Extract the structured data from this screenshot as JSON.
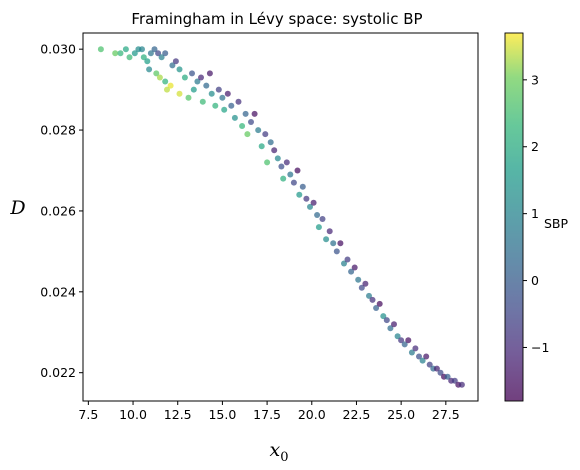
{
  "chart_data": {
    "type": "scatter",
    "title": "Framingham in Lévy space: systolic BP",
    "xlabel": "x",
    "xlabel_sub": "0",
    "ylabel": "D",
    "xlim": [
      7.2,
      29.3
    ],
    "ylim": [
      0.0213,
      0.0304
    ],
    "xticks": [
      "7.5",
      "10.0",
      "12.5",
      "15.0",
      "17.5",
      "20.0",
      "22.5",
      "25.0",
      "27.5"
    ],
    "yticks": [
      "0.022",
      "0.024",
      "0.026",
      "0.028",
      "0.030"
    ],
    "grid": false,
    "colorbar": {
      "label": "SBP",
      "range": [
        -1.8,
        3.7
      ],
      "ticks": [
        "−1",
        "0",
        "1",
        "2",
        "3"
      ],
      "colormap": "viridis"
    },
    "points": [
      {
        "x": 8.2,
        "y": 0.03,
        "c": 2.6
      },
      {
        "x": 9.0,
        "y": 0.0299,
        "c": 2.9
      },
      {
        "x": 9.3,
        "y": 0.0299,
        "c": 2.3
      },
      {
        "x": 9.6,
        "y": 0.03,
        "c": 1.9
      },
      {
        "x": 9.8,
        "y": 0.0298,
        "c": 2.4
      },
      {
        "x": 10.1,
        "y": 0.0299,
        "c": 1.5
      },
      {
        "x": 10.3,
        "y": 0.03,
        "c": 1.2
      },
      {
        "x": 10.5,
        "y": 0.03,
        "c": 1.0
      },
      {
        "x": 10.6,
        "y": 0.0298,
        "c": 2.1
      },
      {
        "x": 10.8,
        "y": 0.0297,
        "c": 1.7
      },
      {
        "x": 11.0,
        "y": 0.0299,
        "c": 0.6
      },
      {
        "x": 11.2,
        "y": 0.03,
        "c": 0.2
      },
      {
        "x": 11.4,
        "y": 0.0299,
        "c": -0.5
      },
      {
        "x": 11.6,
        "y": 0.0298,
        "c": 0.9
      },
      {
        "x": 11.8,
        "y": 0.0299,
        "c": 0.0
      },
      {
        "x": 10.9,
        "y": 0.0295,
        "c": 1.1
      },
      {
        "x": 11.3,
        "y": 0.0294,
        "c": 2.8
      },
      {
        "x": 11.5,
        "y": 0.0293,
        "c": 3.3
      },
      {
        "x": 11.8,
        "y": 0.0292,
        "c": 2.2
      },
      {
        "x": 12.1,
        "y": 0.0291,
        "c": 3.6
      },
      {
        "x": 11.9,
        "y": 0.029,
        "c": 3.4
      },
      {
        "x": 12.2,
        "y": 0.0296,
        "c": 0.4
      },
      {
        "x": 12.4,
        "y": 0.0297,
        "c": -0.8
      },
      {
        "x": 12.6,
        "y": 0.0295,
        "c": 1.4
      },
      {
        "x": 12.6,
        "y": 0.0289,
        "c": 3.5
      },
      {
        "x": 12.9,
        "y": 0.0293,
        "c": 2.0
      },
      {
        "x": 13.1,
        "y": 0.0288,
        "c": 2.7
      },
      {
        "x": 13.3,
        "y": 0.0294,
        "c": -0.2
      },
      {
        "x": 13.4,
        "y": 0.029,
        "c": 1.6
      },
      {
        "x": 13.6,
        "y": 0.0292,
        "c": 0.7
      },
      {
        "x": 13.8,
        "y": 0.0293,
        "c": -1.1
      },
      {
        "x": 13.9,
        "y": 0.0287,
        "c": 2.4
      },
      {
        "x": 14.1,
        "y": 0.0291,
        "c": 0.3
      },
      {
        "x": 14.3,
        "y": 0.0294,
        "c": -1.4
      },
      {
        "x": 14.4,
        "y": 0.0289,
        "c": 1.2
      },
      {
        "x": 14.6,
        "y": 0.0286,
        "c": 2.2
      },
      {
        "x": 14.8,
        "y": 0.029,
        "c": -0.6
      },
      {
        "x": 15.0,
        "y": 0.0288,
        "c": 0.5
      },
      {
        "x": 15.1,
        "y": 0.0285,
        "c": 1.8
      },
      {
        "x": 15.3,
        "y": 0.0289,
        "c": -1.3
      },
      {
        "x": 15.5,
        "y": 0.0286,
        "c": 0.1
      },
      {
        "x": 15.7,
        "y": 0.0283,
        "c": 1.3
      },
      {
        "x": 15.9,
        "y": 0.0287,
        "c": -0.9
      },
      {
        "x": 16.1,
        "y": 0.0281,
        "c": 2.3
      },
      {
        "x": 16.3,
        "y": 0.0284,
        "c": 0.2
      },
      {
        "x": 16.4,
        "y": 0.0279,
        "c": 2.9
      },
      {
        "x": 16.6,
        "y": 0.0282,
        "c": -0.4
      },
      {
        "x": 16.8,
        "y": 0.0284,
        "c": -1.5
      },
      {
        "x": 17.0,
        "y": 0.028,
        "c": 0.8
      },
      {
        "x": 17.2,
        "y": 0.0276,
        "c": 1.9
      },
      {
        "x": 17.4,
        "y": 0.0279,
        "c": -0.7
      },
      {
        "x": 17.5,
        "y": 0.0272,
        "c": 2.6
      },
      {
        "x": 17.7,
        "y": 0.0277,
        "c": 0.4
      },
      {
        "x": 17.9,
        "y": 0.0275,
        "c": -1.2
      },
      {
        "x": 18.1,
        "y": 0.0273,
        "c": 1.1
      },
      {
        "x": 18.3,
        "y": 0.0271,
        "c": -0.3
      },
      {
        "x": 18.4,
        "y": 0.0268,
        "c": 2.1
      },
      {
        "x": 18.6,
        "y": 0.0272,
        "c": -1.0
      },
      {
        "x": 18.8,
        "y": 0.0269,
        "c": 0.6
      },
      {
        "x": 19.0,
        "y": 0.0267,
        "c": -0.5
      },
      {
        "x": 19.2,
        "y": 0.027,
        "c": -1.6
      },
      {
        "x": 19.3,
        "y": 0.0264,
        "c": 1.5
      },
      {
        "x": 19.5,
        "y": 0.0266,
        "c": 0.0
      },
      {
        "x": 19.7,
        "y": 0.0263,
        "c": -0.8
      },
      {
        "x": 19.9,
        "y": 0.0261,
        "c": 1.0
      },
      {
        "x": 20.1,
        "y": 0.0262,
        "c": -1.3
      },
      {
        "x": 20.3,
        "y": 0.0259,
        "c": 0.3
      },
      {
        "x": 20.4,
        "y": 0.0256,
        "c": 1.6
      },
      {
        "x": 20.6,
        "y": 0.0258,
        "c": -0.6
      },
      {
        "x": 20.8,
        "y": 0.0253,
        "c": 1.2
      },
      {
        "x": 21.0,
        "y": 0.0255,
        "c": -1.1
      },
      {
        "x": 21.2,
        "y": 0.0252,
        "c": 0.5
      },
      {
        "x": 21.4,
        "y": 0.025,
        "c": -0.2
      },
      {
        "x": 21.6,
        "y": 0.0252,
        "c": -1.5
      },
      {
        "x": 21.8,
        "y": 0.0247,
        "c": 0.9
      },
      {
        "x": 22.0,
        "y": 0.0248,
        "c": -0.7
      },
      {
        "x": 22.2,
        "y": 0.0245,
        "c": 0.2
      },
      {
        "x": 22.4,
        "y": 0.0246,
        "c": -1.4
      },
      {
        "x": 22.6,
        "y": 0.0243,
        "c": 0.6
      },
      {
        "x": 22.8,
        "y": 0.0241,
        "c": -0.4
      },
      {
        "x": 23.0,
        "y": 0.0242,
        "c": -1.2
      },
      {
        "x": 23.2,
        "y": 0.0239,
        "c": 0.8
      },
      {
        "x": 23.4,
        "y": 0.0238,
        "c": -0.9
      },
      {
        "x": 23.6,
        "y": 0.0236,
        "c": 0.1
      },
      {
        "x": 23.8,
        "y": 0.0237,
        "c": -1.6
      },
      {
        "x": 24.0,
        "y": 0.0234,
        "c": 1.3
      },
      {
        "x": 24.2,
        "y": 0.0233,
        "c": -0.5
      },
      {
        "x": 24.4,
        "y": 0.0231,
        "c": 0.4
      },
      {
        "x": 24.6,
        "y": 0.0232,
        "c": -1.3
      },
      {
        "x": 24.8,
        "y": 0.0229,
        "c": 1.0
      },
      {
        "x": 25.0,
        "y": 0.0228,
        "c": -0.8
      },
      {
        "x": 25.2,
        "y": 0.0227,
        "c": 0.2
      },
      {
        "x": 25.4,
        "y": 0.0228,
        "c": -1.5
      },
      {
        "x": 25.6,
        "y": 0.0225,
        "c": 0.7
      },
      {
        "x": 25.8,
        "y": 0.0226,
        "c": -1.0
      },
      {
        "x": 26.0,
        "y": 0.0224,
        "c": -0.3
      },
      {
        "x": 26.2,
        "y": 0.0223,
        "c": 0.9
      },
      {
        "x": 26.4,
        "y": 0.0224,
        "c": -1.4
      },
      {
        "x": 26.6,
        "y": 0.0222,
        "c": -0.6
      },
      {
        "x": 26.8,
        "y": 0.0221,
        "c": 0.3
      },
      {
        "x": 27.0,
        "y": 0.0221,
        "c": -1.2
      },
      {
        "x": 27.2,
        "y": 0.022,
        "c": -0.4
      },
      {
        "x": 27.4,
        "y": 0.0219,
        "c": -1.6
      },
      {
        "x": 27.6,
        "y": 0.0219,
        "c": 0.1
      },
      {
        "x": 27.8,
        "y": 0.0218,
        "c": -1.1
      },
      {
        "x": 28.0,
        "y": 0.0218,
        "c": -0.7
      },
      {
        "x": 28.2,
        "y": 0.0217,
        "c": -1.5
      },
      {
        "x": 28.4,
        "y": 0.0217,
        "c": -1.0
      }
    ]
  }
}
